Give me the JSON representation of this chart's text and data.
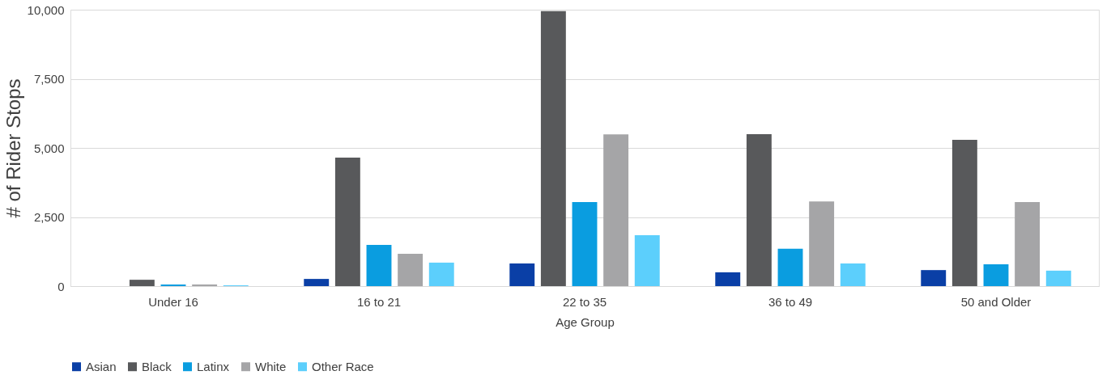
{
  "chart_data": {
    "type": "bar",
    "xlabel": "Age Group",
    "ylabel": "# of Rider Stops",
    "categories": [
      "Under 16",
      "16 to 21",
      "22 to 35",
      "36 to 49",
      "50 and Older"
    ],
    "series": [
      {
        "name": "Asian",
        "color": "#0a3fa6",
        "values": [
          null,
          260,
          820,
          500,
          580
        ]
      },
      {
        "name": "Black",
        "color": "#58595b",
        "values": [
          230,
          4650,
          9950,
          5500,
          5290
        ]
      },
      {
        "name": "Latinx",
        "color": "#0a9de0",
        "values": [
          60,
          1490,
          3040,
          1350,
          790
        ]
      },
      {
        "name": "White",
        "color": "#a5a5a7",
        "values": [
          60,
          1170,
          5490,
          3060,
          3040
        ]
      },
      {
        "name": "Other Race",
        "color": "#5ccffc",
        "values": [
          30,
          850,
          1840,
          820,
          560
        ]
      }
    ],
    "ylim": [
      0,
      10000
    ],
    "yticks": [
      0,
      {
        "value": 2500,
        "label": "2,500"
      },
      {
        "value": 5000,
        "label": "5,000"
      },
      {
        "value": 7500,
        "label": "7,500"
      },
      {
        "value": 10000,
        "label": "10,000"
      }
    ],
    "grid": "y",
    "legend": "bottom"
  }
}
